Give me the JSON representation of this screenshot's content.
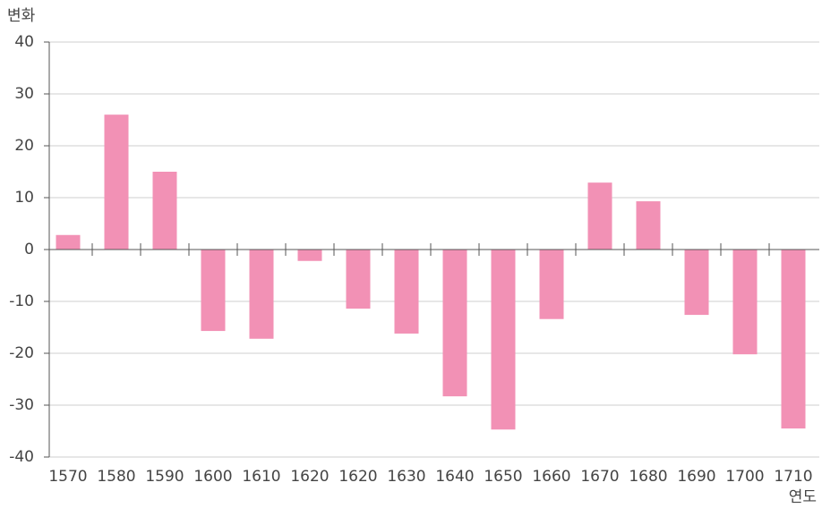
{
  "chart_data": {
    "type": "bar",
    "y_label": "변화",
    "x_label": "연도",
    "categories": [
      "1570",
      "1580",
      "1590",
      "1600",
      "1610",
      "1620",
      "1620",
      "1630",
      "1640",
      "1650",
      "1660",
      "1670",
      "1680",
      "1690",
      "1700",
      "1710"
    ],
    "values": [
      2.8,
      26,
      15,
      -15.7,
      -17.2,
      -2.2,
      -11.4,
      -16.2,
      -28.3,
      -34.7,
      -13.4,
      12.9,
      9.3,
      -12.6,
      -20.2,
      -34.5
    ],
    "color": "#f291b5",
    "ylim": [
      -40,
      40
    ],
    "yticks": [
      -40,
      -30,
      -20,
      -10,
      0,
      10,
      20,
      30,
      40
    ],
    "grid": true
  }
}
